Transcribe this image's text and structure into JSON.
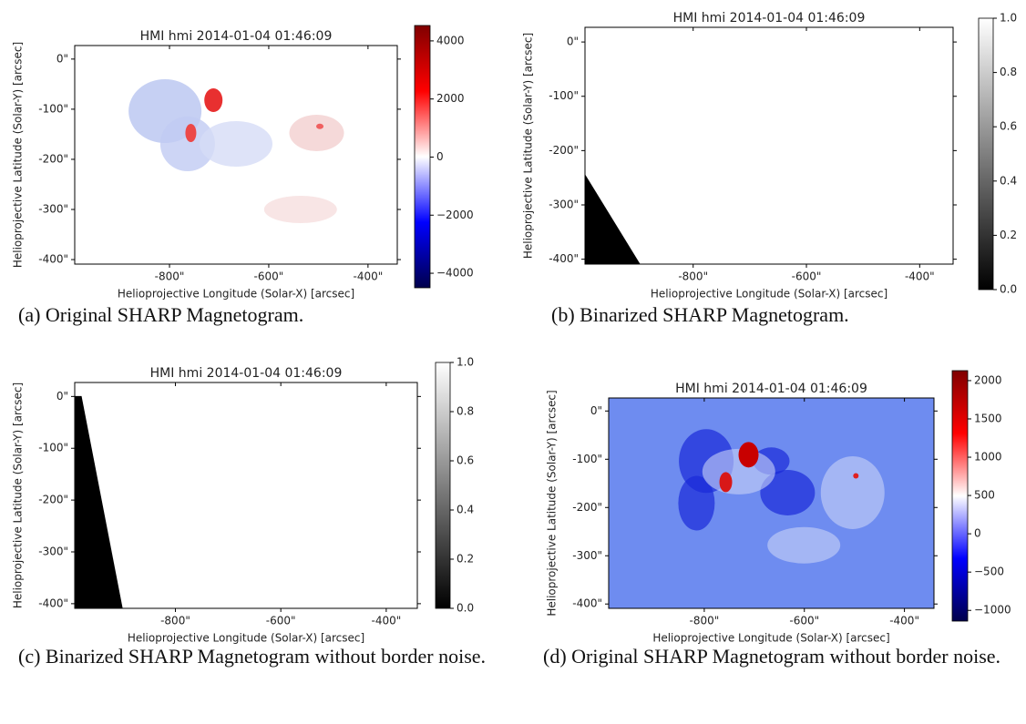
{
  "chart_data": [
    {
      "type": "image",
      "title": "HMI hmi 2014-01-04 01:46:09",
      "xlabel": "Helioprojective Longitude (Solar-X) [arcsec]",
      "ylabel": "Helioprojective Latitude (Solar-Y) [arcsec]",
      "xlim": [
        -991,
        -341
      ],
      "ylim": [
        -409,
        27
      ],
      "xticks": [
        {
          "value": -800,
          "label": "-800\""
        },
        {
          "value": -600,
          "label": "-600\""
        },
        {
          "value": -400,
          "label": "-400\""
        }
      ],
      "yticks": [
        {
          "value": 0,
          "label": "0\""
        },
        {
          "value": -100,
          "label": "-100\""
        },
        {
          "value": -200,
          "label": "-200\""
        },
        {
          "value": -300,
          "label": "-300\""
        },
        {
          "value": -400,
          "label": "-400\""
        }
      ],
      "colorbar": {
        "cmap": "seismic",
        "clim": [
          -4500,
          4530
        ],
        "ticks": [
          4000,
          2000,
          0,
          {
            "value": -2000,
            "label": "−2000"
          },
          {
            "value": -4000,
            "label": "−4000"
          }
        ]
      },
      "caption": "(a) Original SHARP Magnetogram."
    },
    {
      "type": "image",
      "title": "HMI hmi 2014-01-04 01:46:09",
      "xlabel": "Helioprojective Longitude (Solar-X) [arcsec]",
      "ylabel": "Helioprojective Latitude (Solar-Y) [arcsec]",
      "xlim": [
        -991,
        -341
      ],
      "ylim": [
        -409,
        27
      ],
      "xticks": [
        {
          "value": -800,
          "label": "-800\""
        },
        {
          "value": -600,
          "label": "-600\""
        },
        {
          "value": -400,
          "label": "-400\""
        }
      ],
      "yticks": [
        {
          "value": 0,
          "label": "0\""
        },
        {
          "value": -100,
          "label": "-100\""
        },
        {
          "value": -200,
          "label": "-200\""
        },
        {
          "value": -300,
          "label": "-300\""
        },
        {
          "value": -400,
          "label": "-400\""
        }
      ],
      "colorbar": {
        "cmap": "gray",
        "clim": [
          0,
          1
        ],
        "ticks": [
          {
            "value": 1,
            "label": "1.0"
          },
          0.8,
          0.6,
          0.4,
          0.2,
          {
            "value": 0,
            "label": "0.0"
          }
        ]
      },
      "caption": "(b) Binarized SHARP Magnetogram."
    },
    {
      "type": "image",
      "title": "HMI hmi 2014-01-04 01:46:09",
      "xlabel": "Helioprojective Longitude (Solar-X) [arcsec]",
      "ylabel": "Helioprojective Latitude (Solar-Y) [arcsec]",
      "xlim": [
        -991,
        -341
      ],
      "ylim": [
        -409,
        27
      ],
      "xticks": [
        {
          "value": -800,
          "label": "-800\""
        },
        {
          "value": -600,
          "label": "-600\""
        },
        {
          "value": -400,
          "label": "-400\""
        }
      ],
      "yticks": [
        {
          "value": 0,
          "label": "0\""
        },
        {
          "value": -100,
          "label": "-100\""
        },
        {
          "value": -200,
          "label": "-200\""
        },
        {
          "value": -300,
          "label": "-300\""
        },
        {
          "value": -400,
          "label": "-400\""
        }
      ],
      "colorbar": {
        "cmap": "gray",
        "clim": [
          0,
          1
        ],
        "ticks": [
          {
            "value": 1,
            "label": "1.0"
          },
          0.8,
          0.6,
          0.4,
          0.2,
          {
            "value": 0,
            "label": "0.0"
          }
        ]
      },
      "caption": "(c) Binarized SHARP Magnetogram without border noise."
    },
    {
      "type": "image",
      "title": "HMI hmi 2014-01-04 01:46:09",
      "xlabel": "Helioprojective Longitude (Solar-X) [arcsec]",
      "ylabel": "Helioprojective Latitude (Solar-Y) [arcsec]",
      "xlim": [
        -991,
        -341
      ],
      "ylim": [
        -409,
        27
      ],
      "xticks": [
        {
          "value": -800,
          "label": "-800\""
        },
        {
          "value": -600,
          "label": "-600\""
        },
        {
          "value": -400,
          "label": "-400\""
        }
      ],
      "yticks": [
        {
          "value": 0,
          "label": "0\""
        },
        {
          "value": -100,
          "label": "-100\""
        },
        {
          "value": -200,
          "label": "-200\""
        },
        {
          "value": -300,
          "label": "-300\""
        },
        {
          "value": -400,
          "label": "-400\""
        }
      ],
      "colorbar": {
        "cmap": "seismic",
        "clim": [
          -1140,
          2130
        ],
        "ticks": [
          2000,
          1500,
          1000,
          500,
          0,
          {
            "value": -500,
            "label": "−500"
          },
          {
            "value": -1000,
            "label": "−1000"
          }
        ]
      },
      "caption": "(d) Original SHARP Magnetogram without border noise."
    }
  ]
}
